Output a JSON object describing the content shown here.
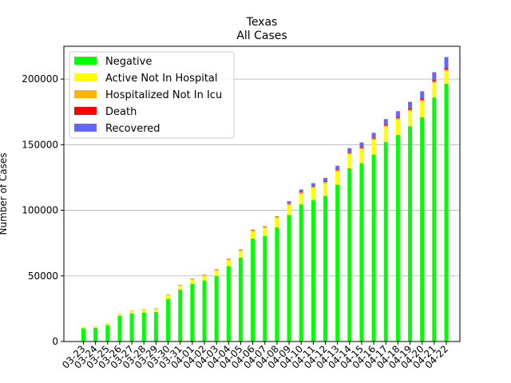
{
  "chart_data": {
    "type": "bar",
    "stacked": true,
    "title": "Texas",
    "subtitle": "All Cases",
    "xlabel": "",
    "ylabel": "Number of Cases",
    "ylim": [
      0,
      225000
    ],
    "yticks": [
      0,
      50000,
      100000,
      150000,
      200000
    ],
    "ytick_labels": [
      "0",
      "50000",
      "100000",
      "150000",
      "200000"
    ],
    "grid": "y",
    "legend_position": "top-left",
    "categories": [
      "03-23",
      "03-24",
      "03-25",
      "03-26",
      "03-27",
      "03-28",
      "03-29",
      "03-30",
      "03-31",
      "04-01",
      "04-02",
      "04-03",
      "04-04",
      "04-05",
      "04-06",
      "04-07",
      "04-08",
      "04-09",
      "04-10",
      "04-11",
      "04-12",
      "04-13",
      "04-14",
      "04-15",
      "04-16",
      "04-17",
      "04-18",
      "04-19",
      "04-20",
      "04-21",
      "04-22"
    ],
    "series": [
      {
        "name": "Negative",
        "color": "#00ff00",
        "values": [
          10000,
          10500,
          12500,
          19500,
          21500,
          22000,
          22500,
          32500,
          39500,
          44000,
          46500,
          50000,
          57500,
          64000,
          78500,
          80500,
          87000,
          96500,
          104500,
          108000,
          111000,
          119500,
          132000,
          136000,
          142500,
          152000,
          157500,
          164000,
          171000,
          186000,
          196500
        ]
      },
      {
        "name": "Active Not In Hospital",
        "color": "#ffff00",
        "values": [
          700,
          800,
          1000,
          1300,
          1700,
          2000,
          2300,
          2800,
          3000,
          3200,
          3500,
          4000,
          4500,
          5000,
          5500,
          6000,
          7000,
          7500,
          8000,
          9000,
          9500,
          10000,
          10500,
          10500,
          11000,
          11500,
          11500,
          11500,
          12000,
          11000,
          9500
        ]
      },
      {
        "name": "Hospitalized Not In Icu",
        "color": "#ffb400",
        "values": [
          100,
          150,
          200,
          250,
          300,
          350,
          400,
          450,
          550,
          600,
          650,
          700,
          750,
          800,
          850,
          900,
          950,
          1000,
          1050,
          1050,
          1100,
          1100,
          1150,
          1150,
          1150,
          1200,
          1200,
          1200,
          1200,
          1200,
          1200
        ]
      },
      {
        "name": "Death",
        "color": "#ff0000",
        "values": [
          20,
          30,
          40,
          50,
          60,
          80,
          100,
          120,
          150,
          180,
          200,
          230,
          260,
          300,
          330,
          360,
          400,
          450,
          500,
          550,
          600,
          650,
          700,
          750,
          800,
          850,
          900,
          950,
          1000,
          1050,
          1100
        ]
      },
      {
        "name": "Recovered",
        "color": "#6666ff",
        "values": [
          0,
          0,
          0,
          0,
          0,
          0,
          0,
          0,
          0,
          0,
          0,
          0,
          0,
          0,
          0,
          0,
          0,
          1500,
          1800,
          2100,
          2400,
          2700,
          3000,
          3300,
          3600,
          4000,
          4500,
          5000,
          5500,
          6000,
          8500
        ]
      }
    ]
  }
}
